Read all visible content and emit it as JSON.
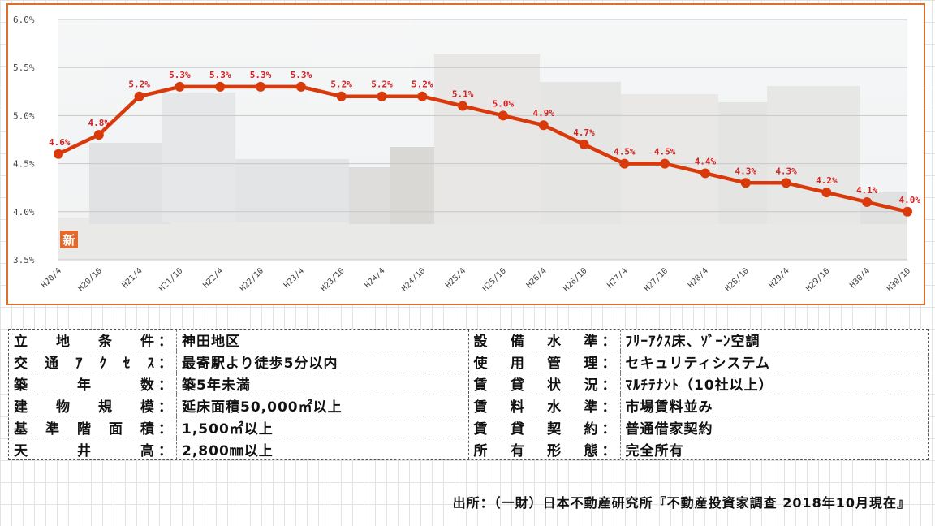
{
  "chart_data": {
    "type": "line",
    "x": [
      "H20/4",
      "H20/10",
      "H21/4",
      "H21/10",
      "H22/4",
      "H22/10",
      "H23/4",
      "H23/10",
      "H24/4",
      "H24/10",
      "H25/4",
      "H25/10",
      "H26/4",
      "H26/10",
      "H27/4",
      "H27/10",
      "H28/4",
      "H28/10",
      "H29/4",
      "H29/10",
      "H30/4",
      "H30/10"
    ],
    "values": [
      4.6,
      4.8,
      5.2,
      5.3,
      5.3,
      5.3,
      5.3,
      5.2,
      5.2,
      5.2,
      5.1,
      5.0,
      4.9,
      4.7,
      4.5,
      4.5,
      4.4,
      4.3,
      4.3,
      4.2,
      4.1,
      4.0
    ],
    "data_labels": [
      "4.6%",
      "4.8%",
      "5.2%",
      "5.3%",
      "5.3%",
      "5.3%",
      "5.3%",
      "5.2%",
      "5.2%",
      "5.2%",
      "5.1%",
      "5.0%",
      "4.9%",
      "4.7%",
      "4.5%",
      "4.5%",
      "4.4%",
      "4.3%",
      "4.3%",
      "4.2%",
      "4.1%",
      "4.0%"
    ],
    "ylim": [
      3.5,
      6.0
    ],
    "yticks": [
      "3.5%",
      "4.0%",
      "4.5%",
      "5.0%",
      "5.5%",
      "6.0%"
    ],
    "grid": true,
    "line_color": "#d93a0c",
    "label_color": "#d42020",
    "frame_color": "#d9702b",
    "badge_text": "新"
  },
  "conditions": {
    "left": [
      {
        "key": "立地条件",
        "sep": "：",
        "value": "神田地区"
      },
      {
        "key": "交通ｱｸｾｽ",
        "sep": "：",
        "value": "最寄駅より徒歩5分以内"
      },
      {
        "key": "築 年 数",
        "sep": "：",
        "value": "築5年未満"
      },
      {
        "key": "建物規模",
        "sep": "：",
        "value": "延床面積50,000㎡以上"
      },
      {
        "key": "基準階面積",
        "sep": "：",
        "value": "1,500㎡以上"
      },
      {
        "key": "天 井 高",
        "sep": "：",
        "value": "2,800㎜以上"
      }
    ],
    "right": [
      {
        "key": "設備水準",
        "sep": "：",
        "value": "ﾌﾘｰｱｸｽ床、ｿﾞｰﾝ空調"
      },
      {
        "key": "使用管理",
        "sep": "：",
        "value": "セキュリティシステム"
      },
      {
        "key": "賃貸状況",
        "sep": "：",
        "value": "ﾏﾙﾁﾃﾅﾝﾄ（10社以上）"
      },
      {
        "key": "賃料水準",
        "sep": "：",
        "value": "市場賃料並み"
      },
      {
        "key": "賃貸契約",
        "sep": "：",
        "value": "普通借家契約"
      },
      {
        "key": "所有形態",
        "sep": "：",
        "value": "完全所有"
      }
    ]
  },
  "source_note": "出所：（一財）日本不動産研究所『不動産投資家調査 2018年10月現在』"
}
